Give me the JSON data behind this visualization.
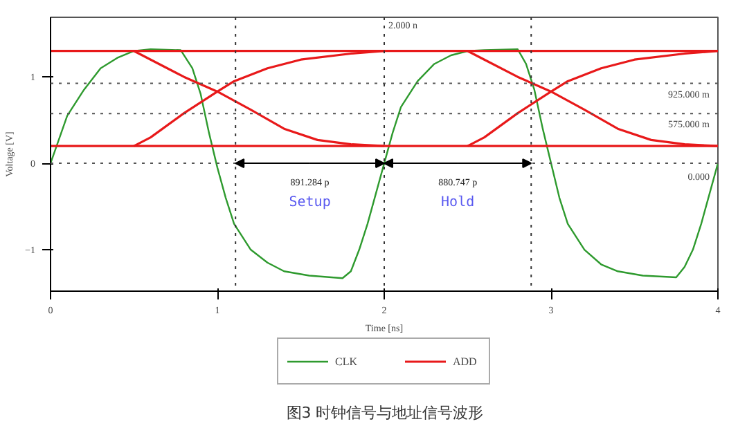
{
  "chart_data": {
    "type": "line",
    "title": "图3 时钟信号与地址信号波形",
    "xlabel": "Time [ns]",
    "ylabel": "Voltage [V]",
    "xlim": [
      0,
      4
    ],
    "ylim": [
      -1.48,
      1.69
    ],
    "xticks": [
      0,
      1,
      2,
      3,
      4
    ],
    "yticks": [
      -1,
      0,
      1
    ],
    "grid": false,
    "legend": "bottom",
    "line_style": "solid",
    "marker": "none",
    "series": [
      {
        "name": "CLK",
        "color": "#2e9a2e",
        "x": [
          0,
          0.1,
          0.2,
          0.3,
          0.4,
          0.5,
          0.6,
          0.78,
          0.85,
          0.9,
          0.95,
          1.0,
          1.05,
          1.1,
          1.2,
          1.3,
          1.4,
          1.55,
          1.75,
          1.8,
          1.85,
          1.9,
          1.95,
          2.0,
          2.05,
          2.1,
          2.2,
          2.3,
          2.4,
          2.5,
          2.6,
          2.8,
          2.85,
          2.9,
          2.95,
          3.0,
          3.05,
          3.1,
          3.2,
          3.3,
          3.4,
          3.55,
          3.75,
          3.8,
          3.85,
          3.9,
          3.95,
          4.0
        ],
        "values": [
          0,
          0.55,
          0.85,
          1.1,
          1.22,
          1.3,
          1.32,
          1.31,
          1.1,
          0.8,
          0.35,
          -0.05,
          -0.4,
          -0.7,
          -1.0,
          -1.15,
          -1.25,
          -1.3,
          -1.33,
          -1.25,
          -1.0,
          -0.7,
          -0.35,
          0,
          0.35,
          0.65,
          0.95,
          1.15,
          1.25,
          1.3,
          1.31,
          1.32,
          1.15,
          0.85,
          0.4,
          0.0,
          -0.4,
          -0.7,
          -1.0,
          -1.17,
          -1.25,
          -1.3,
          -1.32,
          -1.2,
          -1.0,
          -0.7,
          -0.35,
          0.0
        ]
      },
      {
        "name": "ADD",
        "color": "#e8191a",
        "x": [
          0,
          4
        ],
        "values": [
          1.3,
          1.3
        ]
      },
      {
        "color": "#e8191a",
        "x": [
          0,
          4
        ],
        "values": [
          0.2,
          0.2
        ]
      },
      {
        "color": "#e8191a",
        "x": [
          0.5,
          0.6,
          0.8,
          1.0,
          1.2,
          1.4,
          1.6,
          1.8,
          2.0
        ],
        "values": [
          1.3,
          1.2,
          1.0,
          0.83,
          0.62,
          0.4,
          0.27,
          0.22,
          0.2
        ]
      },
      {
        "color": "#e8191a",
        "x": [
          0.5,
          0.6,
          0.8,
          1.0,
          1.1,
          1.3,
          1.5,
          1.8,
          2.0
        ],
        "values": [
          0.2,
          0.3,
          0.58,
          0.83,
          0.95,
          1.1,
          1.2,
          1.27,
          1.3
        ]
      },
      {
        "color": "#e8191a",
        "x": [
          2.5,
          2.6,
          2.8,
          3.0,
          3.2,
          3.4,
          3.6,
          3.8,
          4.0
        ],
        "values": [
          1.3,
          1.2,
          1.0,
          0.83,
          0.62,
          0.4,
          0.27,
          0.22,
          0.2
        ]
      },
      {
        "color": "#e8191a",
        "x": [
          2.5,
          2.6,
          2.8,
          3.0,
          3.1,
          3.3,
          3.5,
          3.8,
          4.0
        ],
        "values": [
          0.2,
          0.3,
          0.58,
          0.83,
          0.95,
          1.1,
          1.2,
          1.27,
          1.3
        ]
      }
    ],
    "ref_lines": [
      {
        "axis": "y",
        "value": 0.925,
        "label": "925.000 m",
        "color": "#555555",
        "line_style": "dotted"
      },
      {
        "axis": "y",
        "value": 0.575,
        "label": "575.000 m",
        "color": "#555555",
        "line_style": "dotted"
      },
      {
        "axis": "y",
        "value": 0,
        "label": "0.000",
        "color": "#555555",
        "line_style": "dotted"
      },
      {
        "axis": "x",
        "value": 1.108716,
        "color": "#333333",
        "line_style": "dotted"
      },
      {
        "axis": "x",
        "value": 2.0,
        "label": "2.000 n",
        "color": "#333333",
        "line_style": "dotted"
      },
      {
        "axis": "x",
        "value": 2.880747,
        "color": "#333333",
        "line_style": "dotted"
      }
    ],
    "annotations": [
      "891.284 p",
      "Setup",
      "880.747 p",
      "Hold"
    ]
  }
}
